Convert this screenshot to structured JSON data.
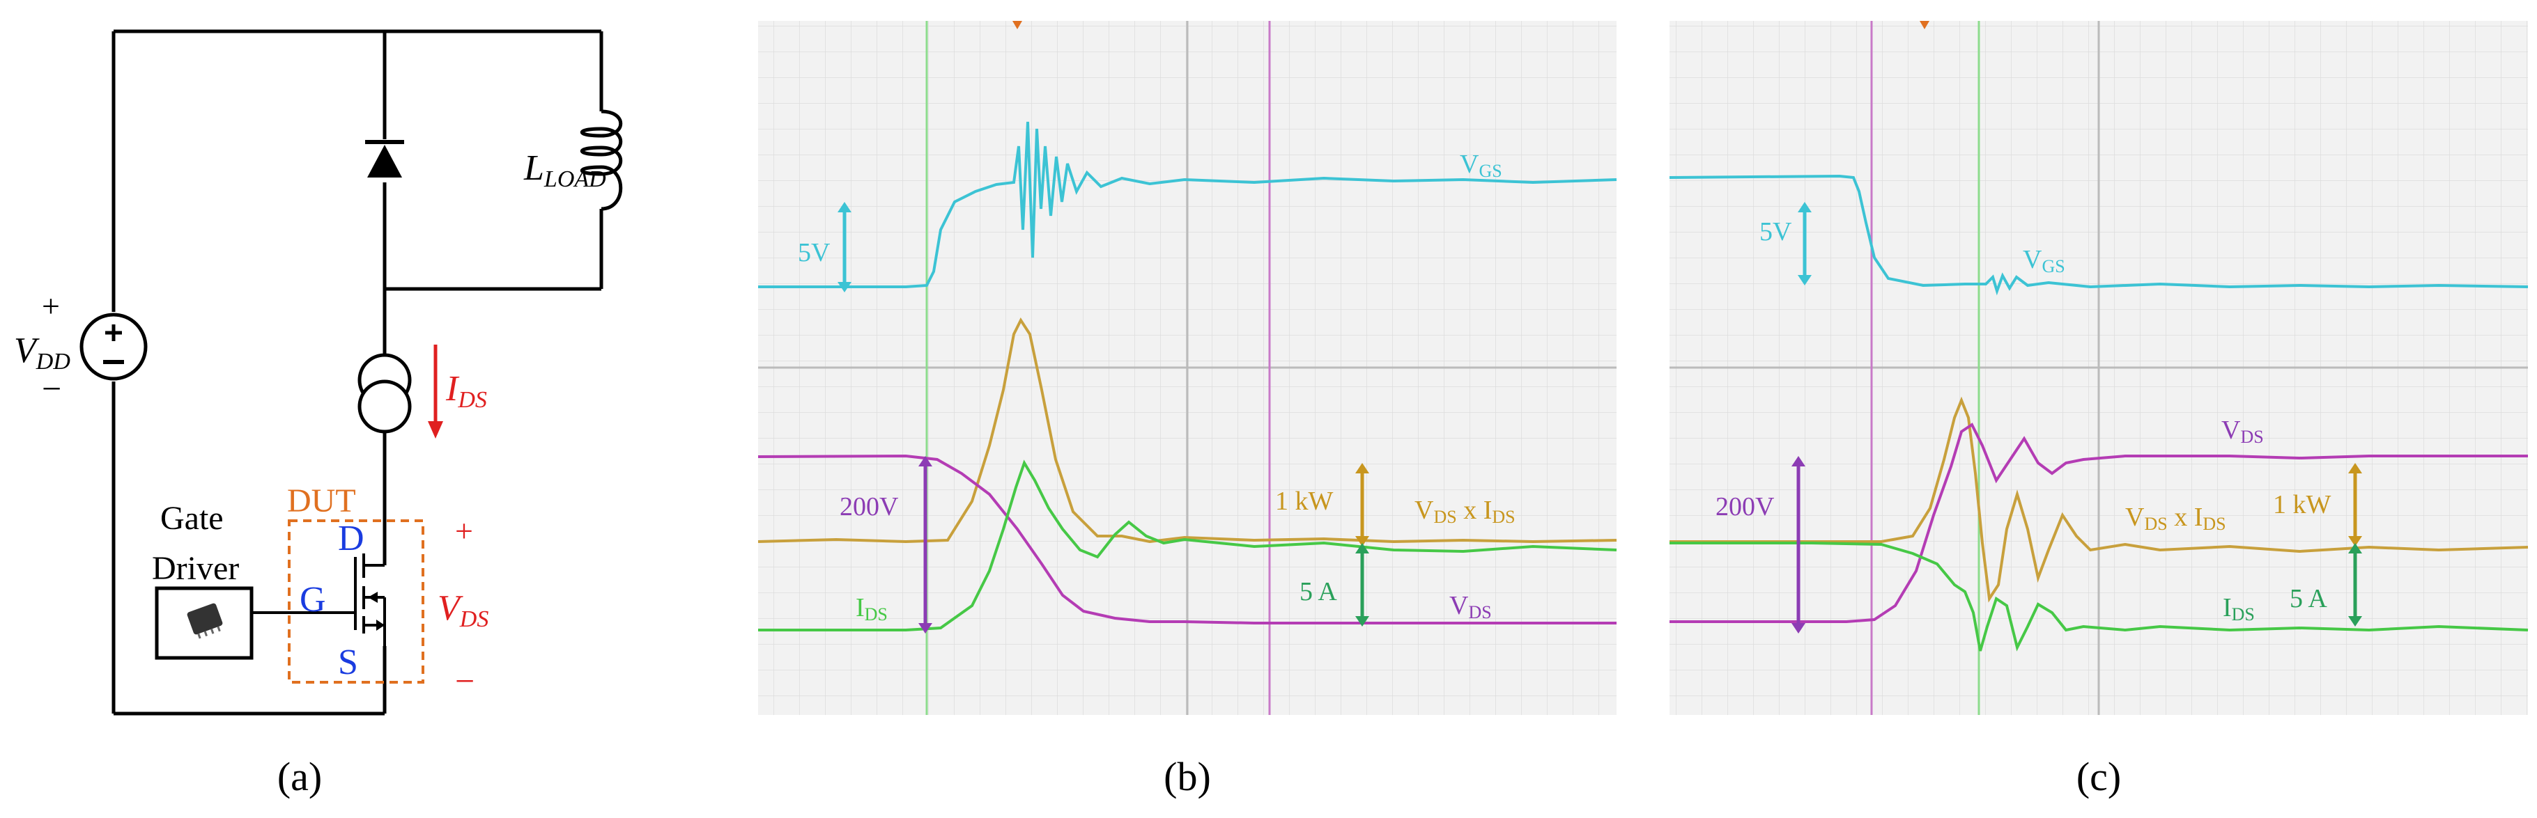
{
  "panel_a": {
    "caption": "(a)",
    "source": {
      "plus": "+",
      "name": "V",
      "sub": "DD",
      "minus": "−"
    },
    "inductor": {
      "name": "L",
      "sub": "LOAD"
    },
    "current": {
      "name": "I",
      "sub": "DS"
    },
    "dut_label": "DUT",
    "drain": "D",
    "gate": "G",
    "source_pin": "S",
    "vds": {
      "plus": "+",
      "name": "V",
      "sub": "DS",
      "minus": "−"
    },
    "gate_driver": {
      "line1": "Gate",
      "line2": "Driver"
    }
  },
  "panel_b": {
    "caption": "(b)",
    "scale_vgs": "5V",
    "scale_vds": "200V",
    "scale_power": "1 kW",
    "scale_ids": "5 A",
    "trace_vgs": {
      "name": "V",
      "sub": "GS"
    },
    "trace_product": {
      "v": "V",
      "vsub": "DS",
      "mid": " x ",
      "i": "I",
      "isub": "DS"
    },
    "trace_vds": {
      "name": "V",
      "sub": "DS"
    },
    "trace_ids": {
      "name": "I",
      "sub": "DS"
    }
  },
  "panel_c": {
    "caption": "(c)",
    "scale_vgs": "5V",
    "scale_vds": "200V",
    "scale_power": "1 kW",
    "scale_ids": "5 A",
    "trace_vgs": {
      "name": "V",
      "sub": "GS"
    },
    "trace_product": {
      "v": "V",
      "vsub": "DS",
      "mid": " x ",
      "i": "I",
      "isub": "DS"
    },
    "trace_vds": {
      "name": "V",
      "sub": "DS"
    },
    "trace_ids": {
      "name": "I",
      "sub": "DS"
    }
  },
  "colors": {
    "vgs": "#3cc3d4",
    "vds": "#b43cb4",
    "product": "#c8a03c",
    "ids": "#46c846",
    "grid": "#c8c8c8",
    "scope_bg": "#f2f2f2",
    "red": "#e02020",
    "orange": "#e07020",
    "blue": "#1a3ce0"
  }
}
